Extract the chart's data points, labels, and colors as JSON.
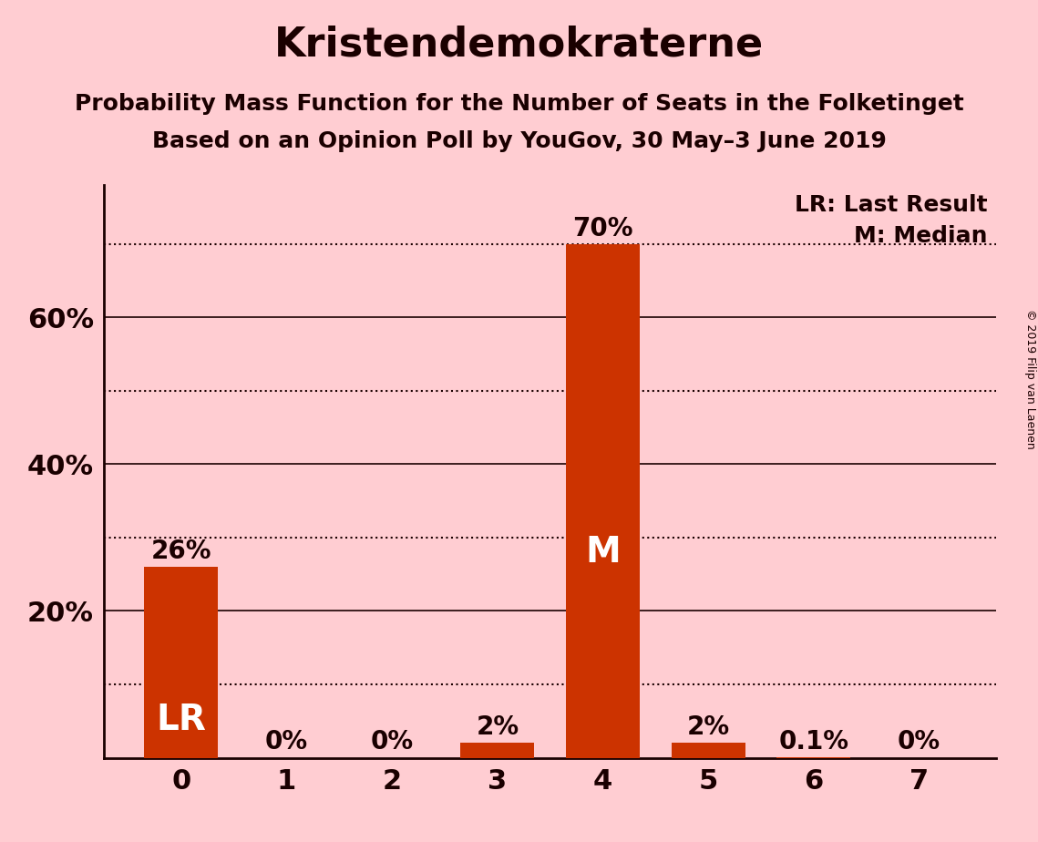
{
  "title": "Kristendemokraterne",
  "subtitle1": "Probability Mass Function for the Number of Seats in the Folketinget",
  "subtitle2": "Based on an Opinion Poll by YouGov, 30 May–3 June 2019",
  "copyright": "© 2019 Filip van Laenen",
  "categories": [
    0,
    1,
    2,
    3,
    4,
    5,
    6,
    7
  ],
  "values": [
    0.26,
    0.0,
    0.0,
    0.02,
    0.7,
    0.02,
    0.001,
    0.0
  ],
  "bar_color": "#CC3300",
  "background_color": "#FFCDD2",
  "text_color": "#1a0000",
  "inside_label_color": "#ffffff",
  "bar_labels": [
    "26%",
    "0%",
    "0%",
    "2%",
    "70%",
    "2%",
    "0.1%",
    "0%"
  ],
  "bar_annotations": {
    "0": "LR",
    "4": "M"
  },
  "ylim": [
    0,
    0.78
  ],
  "yticks": [
    0.2,
    0.4,
    0.6
  ],
  "ytick_labels": [
    "20%",
    "40%",
    "60%"
  ],
  "solid_lines": [
    0.2,
    0.4,
    0.6
  ],
  "dotted_lines": [
    0.1,
    0.3,
    0.5,
    0.7
  ],
  "legend_text": [
    "LR: Last Result",
    "M: Median"
  ],
  "title_fontsize": 32,
  "subtitle_fontsize": 18,
  "axis_tick_fontsize": 22,
  "bar_label_fontsize": 20,
  "annotation_fontsize": 28,
  "legend_fontsize": 18,
  "copyright_fontsize": 9
}
